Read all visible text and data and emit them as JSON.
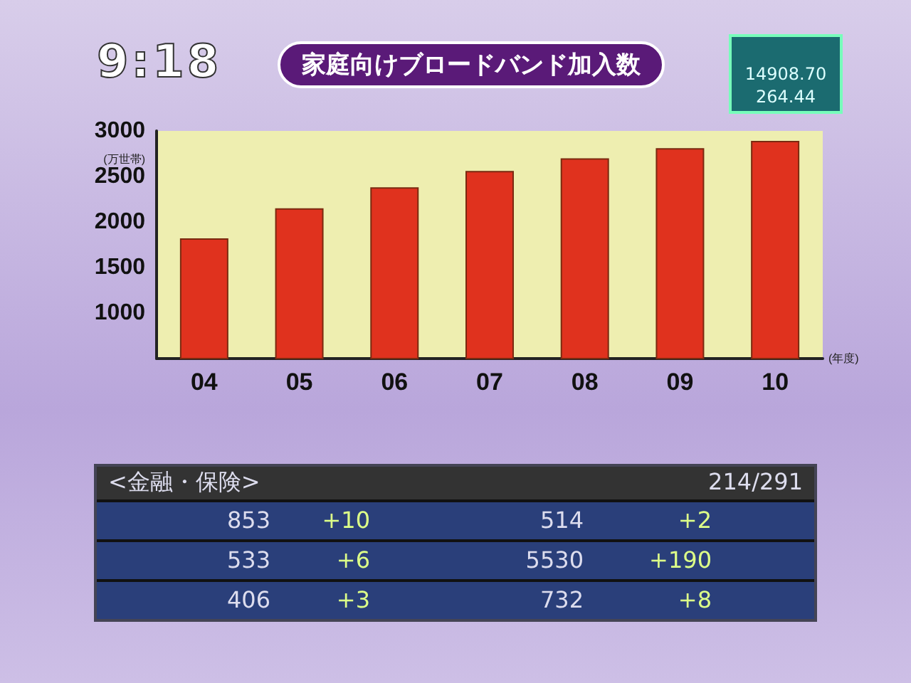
{
  "chart_data": {
    "type": "bar",
    "title": "家庭向けブロードバンド加入数",
    "ylabel": "(万世帯)",
    "xlabel": "(年度)",
    "categories": [
      "04",
      "05",
      "06",
      "07",
      "08",
      "09",
      "10"
    ],
    "values": [
      1820,
      2150,
      2380,
      2560,
      2700,
      2810,
      2890
    ],
    "color": "#e0321e",
    "ylim": [
      500,
      3000
    ],
    "yticks": [
      1000,
      1500,
      2000,
      2500,
      3000
    ],
    "grid": false,
    "annotations": [
      "9:18",
      "14908.70",
      "264.44",
      "<金融・保険>",
      "214/291",
      "853",
      "+10",
      "514",
      "+2",
      "533",
      "+6",
      "5530",
      "+190",
      "406",
      "+3",
      "732",
      "+8"
    ]
  }
}
